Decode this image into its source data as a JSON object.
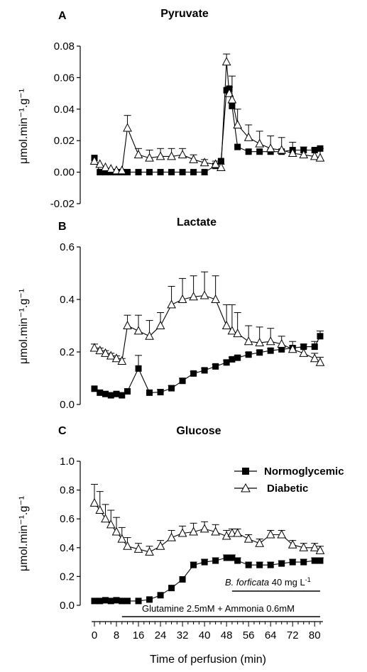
{
  "figure": {
    "x_label": "Time of perfusion (min)",
    "x_ticks": [
      0,
      8,
      16,
      24,
      32,
      40,
      48,
      56,
      64,
      72,
      80
    ]
  },
  "legend": {
    "entries": [
      {
        "label": "Normoglycemic",
        "marker": "filled-square"
      },
      {
        "label": "Diabetic",
        "marker": "open-triangle"
      }
    ]
  },
  "annotations": {
    "bar1_italic": "B. forficata",
    "bar1_rest": " 40 mg L",
    "bar1_sup": "-1",
    "bar1_range": [
      50,
      82
    ],
    "bar2_text": "Glutamine 2.5mM + Ammonia 0.6mM",
    "bar2_range": [
      10,
      82
    ]
  },
  "colors": {
    "normoglycemic": "#000000",
    "diabetic": "#ffffff",
    "line": "#000000"
  },
  "chart_data": [
    {
      "type": "line",
      "letter": "A",
      "title": "Pyruvate",
      "ylabel": "μmol.min⁻¹.g⁻¹",
      "ylim": [
        -0.02,
        0.08
      ],
      "yticks": [
        "-0.02",
        "0.00",
        "0.02",
        "0.04",
        "0.06",
        "0.08"
      ],
      "grid": false,
      "series": [
        {
          "name": "Normoglycemic",
          "x": [
            0,
            2,
            4,
            6,
            8,
            10,
            12,
            16,
            20,
            24,
            28,
            32,
            36,
            40,
            44,
            46,
            48,
            49,
            50,
            52,
            56,
            60,
            64,
            68,
            72,
            76,
            80,
            82
          ],
          "y": [
            0.009,
            0,
            0,
            0,
            0,
            0,
            0,
            0,
            0,
            0,
            0,
            0,
            0,
            0,
            0.004,
            0.007,
            0.052,
            0.053,
            0.042,
            0.016,
            0.013,
            0.013,
            0.013,
            0.013,
            0.014,
            0.014,
            0.014,
            0.015
          ],
          "err": [
            0,
            0,
            0,
            0,
            0,
            0,
            0,
            0,
            0,
            0,
            0,
            0,
            0,
            0,
            0,
            0,
            0,
            0,
            0,
            0,
            0,
            0,
            0,
            0,
            0,
            0,
            0,
            0
          ]
        },
        {
          "name": "Diabetic",
          "x": [
            0,
            2,
            4,
            6,
            8,
            10,
            12,
            16,
            20,
            24,
            28,
            32,
            36,
            40,
            44,
            46,
            48,
            49,
            50,
            52,
            56,
            60,
            64,
            68,
            72,
            76,
            80,
            82
          ],
          "y": [
            0.007,
            0.005,
            0.003,
            0.002,
            0.001,
            0.001,
            0.028,
            0.011,
            0.009,
            0.01,
            0.01,
            0.011,
            0.008,
            0.006,
            0.005,
            0.003,
            0.07,
            0.05,
            0.046,
            0.03,
            0.022,
            0.018,
            0.015,
            0.014,
            0.012,
            0.011,
            0.01,
            0.009
          ],
          "err": [
            0,
            0,
            0,
            0,
            0,
            0,
            0.008,
            0.004,
            0.005,
            0.005,
            0.005,
            0.004,
            0.003,
            0.002,
            0.002,
            0.002,
            0.005,
            0.004,
            0.015,
            0.01,
            0.008,
            0.008,
            0.008,
            0.008,
            0.007,
            0.005,
            0.005,
            0.006
          ]
        }
      ]
    },
    {
      "type": "line",
      "letter": "B",
      "title": "Lactate",
      "ylabel": "μmol.min⁻¹.g⁻¹",
      "ylim": [
        0,
        0.6
      ],
      "yticks": [
        "0.0",
        "0.2",
        "0.4",
        "0.6"
      ],
      "grid": false,
      "series": [
        {
          "name": "Normoglycemic",
          "x": [
            0,
            2,
            4,
            6,
            8,
            10,
            12,
            16,
            20,
            24,
            28,
            32,
            36,
            40,
            44,
            48,
            50,
            52,
            56,
            60,
            64,
            68,
            72,
            76,
            80,
            82
          ],
          "y": [
            0.06,
            0.045,
            0.04,
            0.035,
            0.04,
            0.035,
            0.05,
            0.137,
            0.045,
            0.047,
            0.062,
            0.09,
            0.118,
            0.13,
            0.145,
            0.16,
            0.172,
            0.178,
            0.19,
            0.198,
            0.205,
            0.21,
            0.215,
            0.22,
            0.22,
            0.26
          ],
          "err": [
            0,
            0,
            0,
            0,
            0,
            0,
            0,
            0.05,
            0,
            0.01,
            0.01,
            0.01,
            0.008,
            0.008,
            0.008,
            0.008,
            0.008,
            0.008,
            0.008,
            0.008,
            0.008,
            0.008,
            0.008,
            0.01,
            0.02,
            0.02
          ]
        },
        {
          "name": "Diabetic",
          "x": [
            0,
            2,
            4,
            6,
            8,
            10,
            12,
            16,
            20,
            24,
            28,
            32,
            36,
            40,
            44,
            48,
            50,
            52,
            56,
            60,
            64,
            68,
            72,
            76,
            80,
            82
          ],
          "y": [
            0.215,
            0.205,
            0.195,
            0.185,
            0.175,
            0.165,
            0.3,
            0.28,
            0.26,
            0.3,
            0.38,
            0.4,
            0.41,
            0.415,
            0.4,
            0.3,
            0.28,
            0.27,
            0.24,
            0.235,
            0.24,
            0.23,
            0.21,
            0.195,
            0.175,
            0.16
          ],
          "err": [
            0.015,
            0.01,
            0.01,
            0.01,
            0.01,
            0.01,
            0.04,
            0.06,
            0.06,
            0.05,
            0.07,
            0.08,
            0.08,
            0.09,
            0.09,
            0.08,
            0.1,
            0.08,
            0.06,
            0.06,
            0.05,
            0.03,
            0.03,
            0.02,
            0.02,
            0.02
          ]
        }
      ]
    },
    {
      "type": "line",
      "letter": "C",
      "title": "Glucose",
      "ylabel": "μmol.min⁻¹.g⁻¹",
      "ylim": [
        0,
        1.0
      ],
      "yticks": [
        "0.0",
        "0.2",
        "0.4",
        "0.6",
        "0.8",
        "1.0"
      ],
      "grid": false,
      "series": [
        {
          "name": "Normoglycemic",
          "x": [
            0,
            2,
            4,
            6,
            8,
            10,
            12,
            16,
            20,
            24,
            28,
            32,
            36,
            40,
            44,
            48,
            50,
            52,
            56,
            60,
            64,
            68,
            72,
            76,
            80,
            82
          ],
          "y": [
            0.03,
            0.03,
            0.035,
            0.03,
            0.035,
            0.03,
            0.03,
            0.03,
            0.04,
            0.07,
            0.12,
            0.18,
            0.28,
            0.3,
            0.31,
            0.33,
            0.33,
            0.31,
            0.28,
            0.28,
            0.28,
            0.29,
            0.3,
            0.3,
            0.31,
            0.31
          ],
          "err": [
            0,
            0,
            0,
            0,
            0,
            0,
            0,
            0,
            0,
            0,
            0,
            0,
            0.02,
            0.02,
            0.02,
            0.02,
            0.02,
            0.02,
            0.02,
            0.02,
            0.02,
            0.02,
            0.02,
            0.02,
            0.02,
            0.02
          ]
        },
        {
          "name": "Diabetic",
          "x": [
            0,
            2,
            4,
            6,
            8,
            10,
            12,
            16,
            20,
            24,
            28,
            32,
            36,
            40,
            44,
            48,
            50,
            52,
            56,
            60,
            64,
            68,
            72,
            76,
            80,
            82
          ],
          "y": [
            0.71,
            0.66,
            0.6,
            0.56,
            0.51,
            0.46,
            0.41,
            0.39,
            0.37,
            0.41,
            0.47,
            0.5,
            0.51,
            0.53,
            0.51,
            0.48,
            0.5,
            0.5,
            0.46,
            0.43,
            0.49,
            0.49,
            0.42,
            0.4,
            0.4,
            0.38
          ],
          "err": [
            0.13,
            0.13,
            0.1,
            0.1,
            0.1,
            0.08,
            0.06,
            0.04,
            0.04,
            0.04,
            0.05,
            0.05,
            0.06,
            0.05,
            0.05,
            0.04,
            0.03,
            0.03,
            0.03,
            0.03,
            0.03,
            0.03,
            0.03,
            0.03,
            0.03,
            0.03
          ]
        }
      ]
    }
  ]
}
